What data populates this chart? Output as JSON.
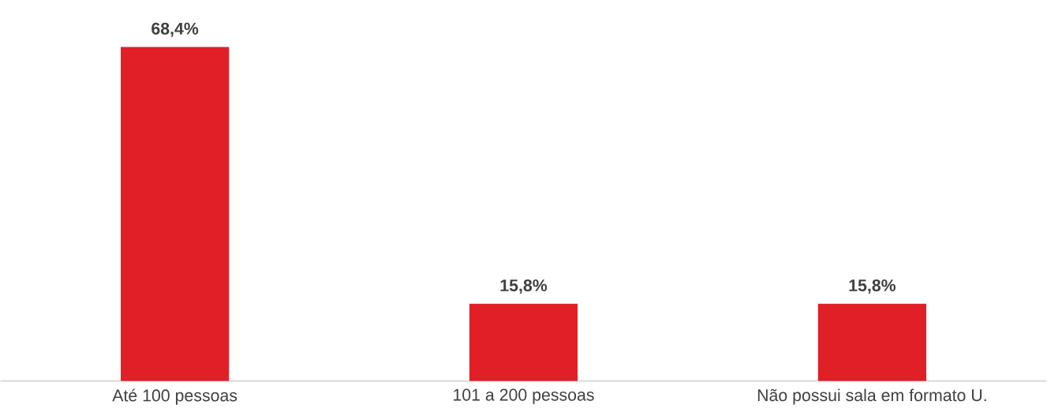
{
  "chart_data": {
    "type": "bar",
    "categories": [
      "Até 100 pessoas",
      "101 a 200 pessoas",
      "Não possui sala em formato U."
    ],
    "values": [
      68.4,
      15.8,
      15.8
    ],
    "value_labels": [
      "68,4%",
      "15,8%",
      "15,8%"
    ],
    "color": "#e01f26"
  }
}
